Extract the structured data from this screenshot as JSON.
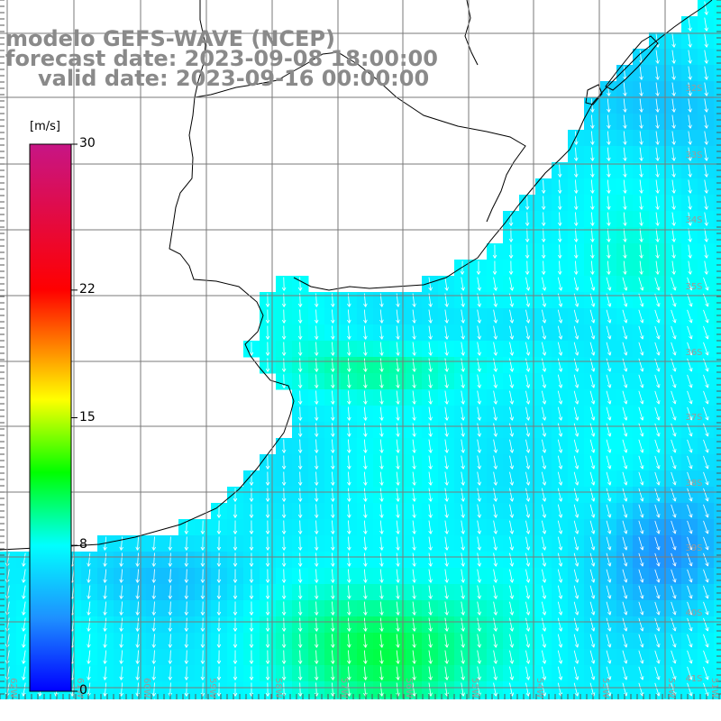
{
  "header": {
    "line1": "modelo GEFS-WAVE (NCEP)",
    "line2": "forecast date: 2023-09-08 18:00:00",
    "line3": "valid date: 2023-09-16 00:00:00"
  },
  "colorbar": {
    "unit": "[m/s]",
    "ticks": [
      {
        "value": 30,
        "label": "30"
      },
      {
        "value": 22,
        "label": "22"
      },
      {
        "value": 15,
        "label": "15"
      },
      {
        "value": 8,
        "label": "8"
      },
      {
        "value": 0,
        "label": "0"
      }
    ],
    "stops": [
      {
        "value": 0,
        "color": "#0000ff"
      },
      {
        "value": 4,
        "color": "#1e90ff"
      },
      {
        "value": 8,
        "color": "#00ffff"
      },
      {
        "value": 12,
        "color": "#00ff00"
      },
      {
        "value": 16,
        "color": "#ffff00"
      },
      {
        "value": 22,
        "color": "#ff0000"
      },
      {
        "value": 30,
        "color": "#c71585"
      }
    ]
  },
  "map": {
    "lat_labels": [
      "32S",
      "33S",
      "34S",
      "35S",
      "36S",
      "37S",
      "38S",
      "39S",
      "40S",
      "41S"
    ],
    "lon_labels": [
      "62W",
      "61W",
      "60W",
      "59W",
      "58W",
      "57W",
      "56W",
      "55W",
      "54W",
      "53W",
      "52W",
      "51W"
    ],
    "colors": {
      "land": "#ffffff",
      "grid": "#7a7a7a",
      "coast": "#000000",
      "arrow": "#ffffff"
    }
  }
}
